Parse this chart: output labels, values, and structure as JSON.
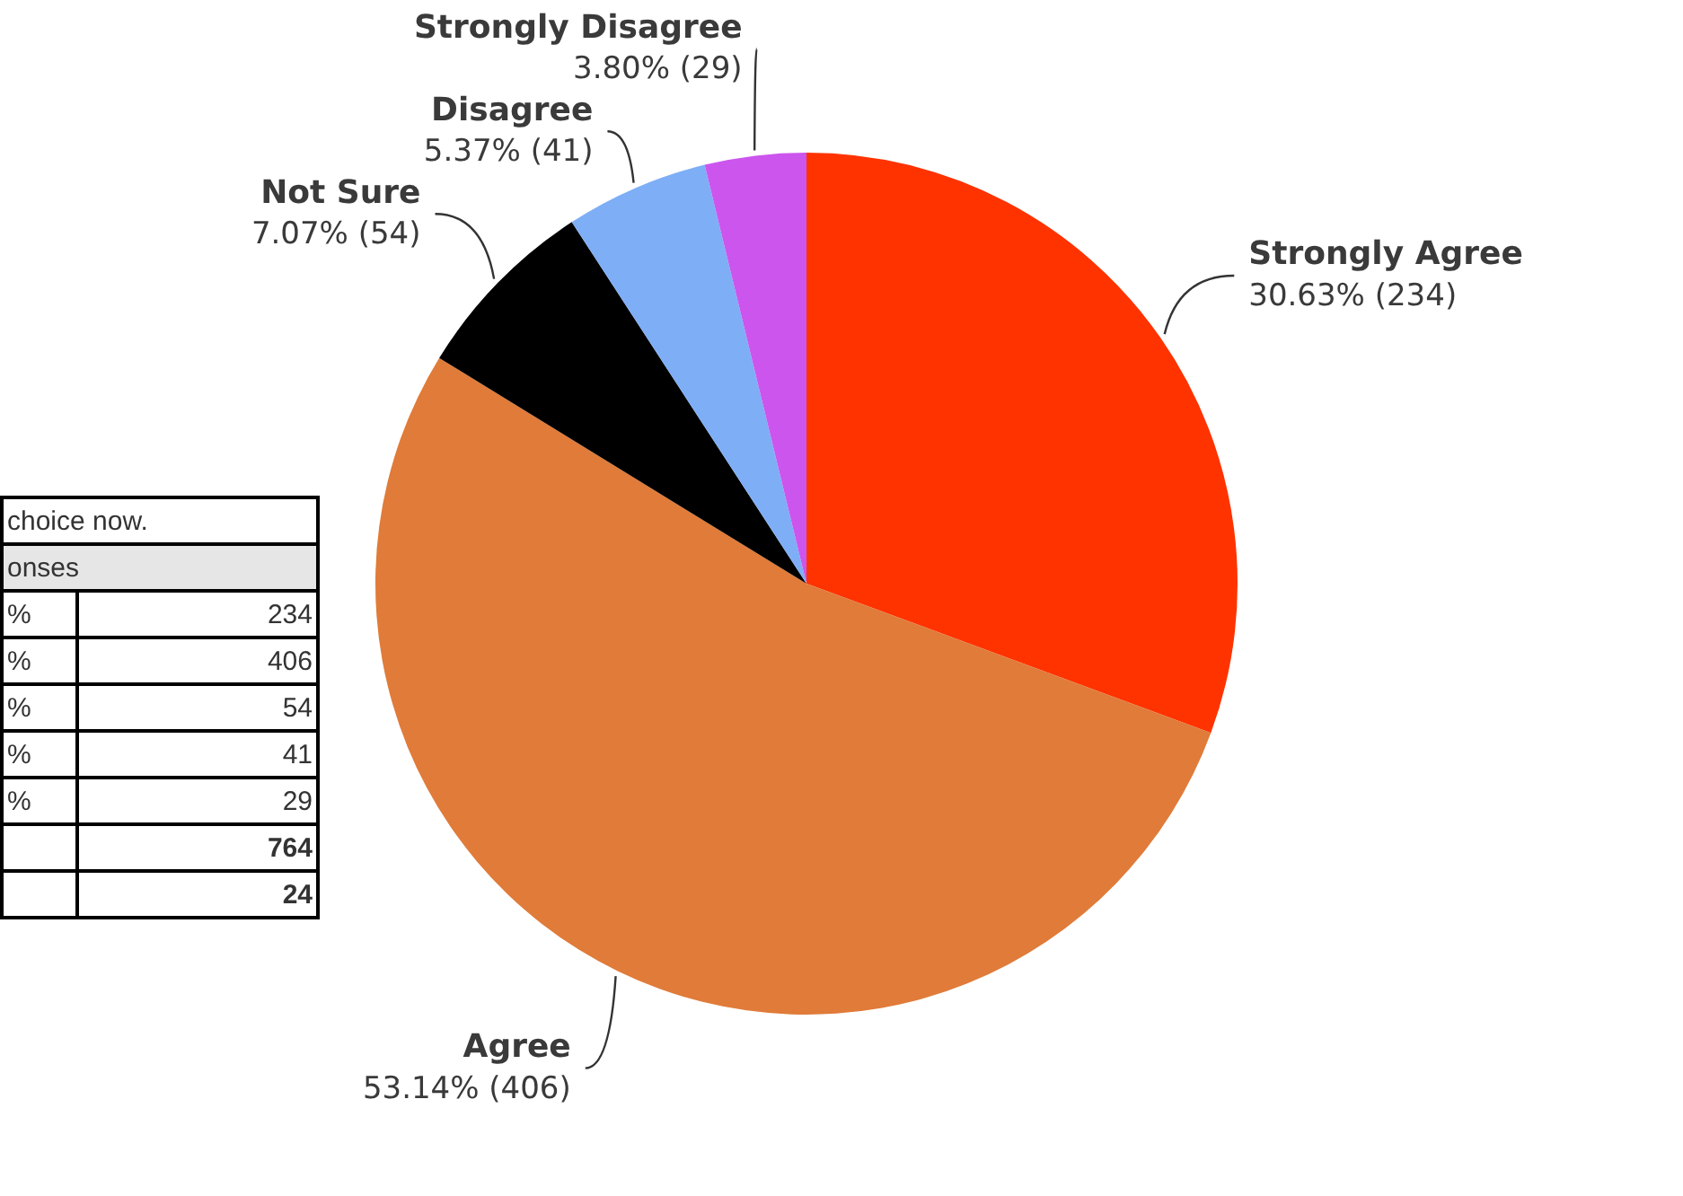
{
  "chart_data": [
    {
      "type": "pie",
      "categories": [
        "Strongly Agree",
        "Agree",
        "Not Sure",
        "Disagree",
        "Strongly Disagree"
      ],
      "values": [
        234,
        406,
        54,
        41,
        29
      ],
      "colors": [
        "#ff3300",
        "#e07b39",
        "#000000",
        "#7eaef6",
        "#cc55ee"
      ],
      "value_labels": [
        "30.63% (234)",
        "53.14% (406)",
        "7.07% (54)",
        "5.37% (41)",
        "3.80% (29)"
      ],
      "legend": false
    },
    {
      "type": "other",
      "annotations": [
        "choice now.",
        "onses",
        "%",
        "%",
        "%",
        "%",
        "%",
        "234",
        "406",
        "54",
        "41",
        "29",
        "764",
        "24"
      ]
    }
  ]
}
